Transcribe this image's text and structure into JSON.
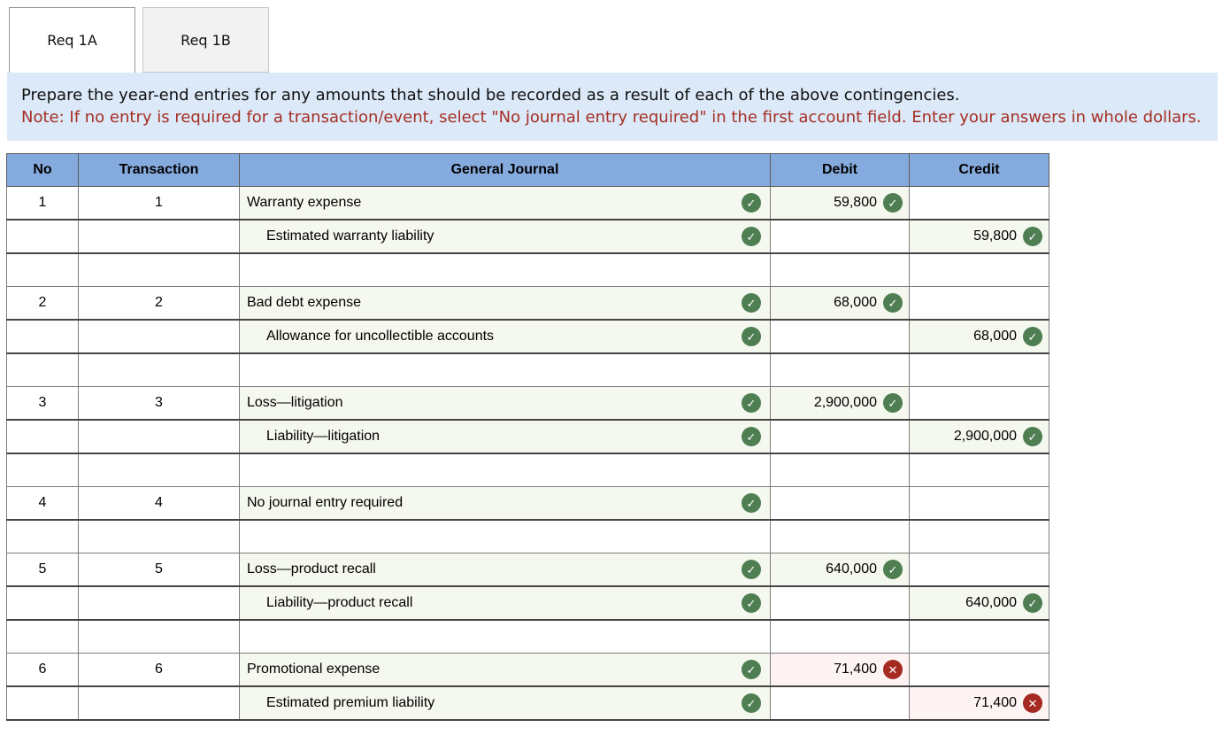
{
  "tabs": [
    {
      "label": "Req 1A",
      "active": true
    },
    {
      "label": "Req 1B",
      "active": false
    }
  ],
  "instructions": {
    "line1": "Prepare the year-end entries for any amounts that should be recorded as a result of each of the above contingencies.",
    "note": "Note: If no entry is required for a transaction/event, select \"No journal entry required\" in the first account field. Enter your answers in whole dollars."
  },
  "icons": {
    "correct_glyph": "✓",
    "incorrect_glyph": "✕"
  },
  "colors": {
    "header_bg": "#85abde",
    "instructions_bg": "#dbe9f8",
    "note_text": "#a52f23",
    "correct_green": "#4e7e52",
    "incorrect_red": "#a52a21",
    "filled_cell_green": "#f4f8ee",
    "error_cell_pink": "#fdf3f2"
  },
  "table": {
    "headers": [
      "No",
      "Transaction",
      "General Journal",
      "Debit",
      "Credit"
    ],
    "rows": [
      {
        "type": "entry",
        "no": "1",
        "transaction": "1",
        "account": "Warranty expense",
        "indent": false,
        "account_status": "correct",
        "debit": "59,800",
        "debit_status": "correct",
        "credit": "",
        "credit_status": ""
      },
      {
        "type": "entry",
        "no": "",
        "transaction": "",
        "account": "Estimated warranty liability",
        "indent": true,
        "account_status": "correct",
        "debit": "",
        "debit_status": "",
        "credit": "59,800",
        "credit_status": "correct"
      },
      {
        "type": "spacer"
      },
      {
        "type": "entry",
        "no": "2",
        "transaction": "2",
        "account": "Bad debt expense",
        "indent": false,
        "account_status": "correct",
        "debit": "68,000",
        "debit_status": "correct",
        "credit": "",
        "credit_status": ""
      },
      {
        "type": "entry",
        "no": "",
        "transaction": "",
        "account": "Allowance for uncollectible accounts",
        "indent": true,
        "account_status": "correct",
        "debit": "",
        "debit_status": "",
        "credit": "68,000",
        "credit_status": "correct"
      },
      {
        "type": "spacer"
      },
      {
        "type": "entry",
        "no": "3",
        "transaction": "3",
        "account": "Loss—litigation",
        "indent": false,
        "account_status": "correct",
        "debit": "2,900,000",
        "debit_status": "correct",
        "credit": "",
        "credit_status": ""
      },
      {
        "type": "entry",
        "no": "",
        "transaction": "",
        "account": "Liability—litigation",
        "indent": true,
        "account_status": "correct",
        "debit": "",
        "debit_status": "",
        "credit": "2,900,000",
        "credit_status": "correct"
      },
      {
        "type": "spacer"
      },
      {
        "type": "entry",
        "no": "4",
        "transaction": "4",
        "account": "No journal entry required",
        "indent": false,
        "account_status": "correct",
        "debit": "",
        "debit_status": "",
        "credit": "",
        "credit_status": ""
      },
      {
        "type": "spacer"
      },
      {
        "type": "entry",
        "no": "5",
        "transaction": "5",
        "account": "Loss—product recall",
        "indent": false,
        "account_status": "correct",
        "debit": "640,000",
        "debit_status": "correct",
        "credit": "",
        "credit_status": ""
      },
      {
        "type": "entry",
        "no": "",
        "transaction": "",
        "account": "Liability—product recall",
        "indent": true,
        "account_status": "correct",
        "debit": "",
        "debit_status": "",
        "credit": "640,000",
        "credit_status": "correct"
      },
      {
        "type": "spacer"
      },
      {
        "type": "entry",
        "no": "6",
        "transaction": "6",
        "account": "Promotional expense",
        "indent": false,
        "account_status": "correct",
        "debit": "71,400",
        "debit_status": "incorrect",
        "credit": "",
        "credit_status": ""
      },
      {
        "type": "entry",
        "no": "",
        "transaction": "",
        "account": "Estimated premium liability",
        "indent": true,
        "account_status": "correct",
        "debit": "",
        "debit_status": "",
        "credit": "71,400",
        "credit_status": "incorrect"
      }
    ]
  }
}
